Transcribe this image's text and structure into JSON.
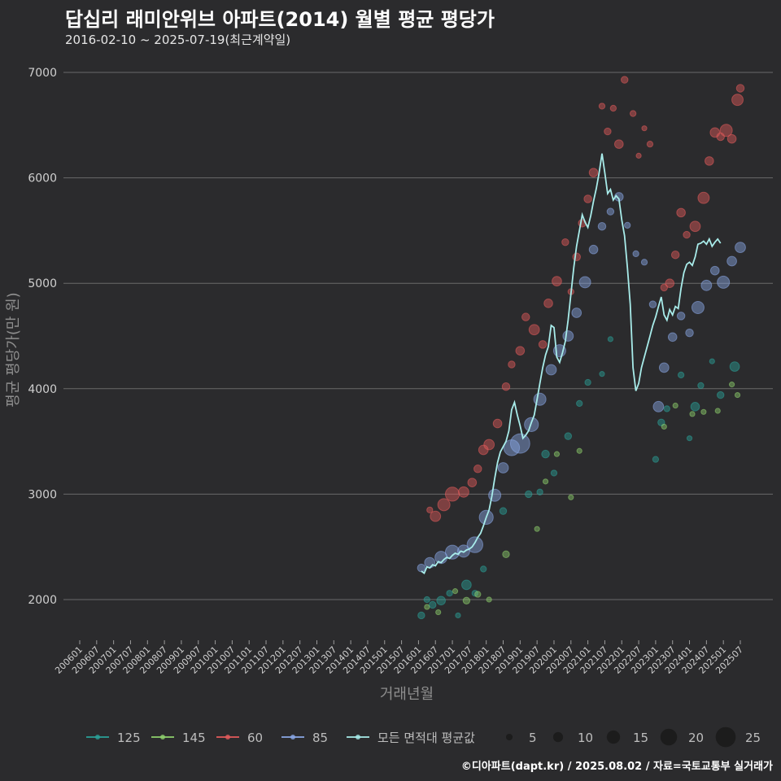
{
  "header": {
    "title": "답십리 래미안위브 아파트(2014) 월별 평균 평당가",
    "subtitle": "2016-02-10 ~ 2025-07-19(최근계약일)"
  },
  "caption": "©디아파트(dapt.kr) / 2025.08.02 / 자료=국토교통부 실거래가",
  "chart_data": {
    "type": "scatter",
    "xlabel": "거래년월",
    "ylabel": "평균 평당가(만 원)",
    "ylim": [
      1600,
      7050
    ],
    "yticks": [
      2000,
      3000,
      4000,
      5000,
      6000,
      7000
    ],
    "x_range": [
      "2006-01",
      "2025-09"
    ],
    "xticks": [
      "200601",
      "200607",
      "200701",
      "200707",
      "200801",
      "200807",
      "200901",
      "200907",
      "201001",
      "201007",
      "201101",
      "201107",
      "201201",
      "201207",
      "201301",
      "201307",
      "201401",
      "201407",
      "201501",
      "201507",
      "201601",
      "201607",
      "201701",
      "201707",
      "201801",
      "201807",
      "201901",
      "201907",
      "202001",
      "202007",
      "202101",
      "202107",
      "202201",
      "202207",
      "202301",
      "202307",
      "202401",
      "202407",
      "202501",
      "202507"
    ],
    "grid": true,
    "legend_position": "bottom",
    "colors": {
      "125": "#2aa198",
      "145": "#8fd16d",
      "60": "#e35b5b",
      "85": "#8aa8e6",
      "avg": "#a8ecea"
    },
    "series": [
      {
        "name": "125",
        "points": [
          [
            "2016-02",
            1850,
            4
          ],
          [
            "2016-04",
            2000,
            3
          ],
          [
            "2016-06",
            1950,
            4
          ],
          [
            "2016-09",
            1990,
            6
          ],
          [
            "2016-12",
            2060,
            3
          ],
          [
            "2017-03",
            1850,
            2
          ],
          [
            "2017-06",
            2140,
            7
          ],
          [
            "2017-09",
            2060,
            3
          ],
          [
            "2017-12",
            2290,
            3
          ],
          [
            "2018-07",
            2840,
            4
          ],
          [
            "2019-04",
            3000,
            4
          ],
          [
            "2019-08",
            3020,
            3
          ],
          [
            "2019-10",
            3380,
            5
          ],
          [
            "2020-01",
            3200,
            3
          ],
          [
            "2020-06",
            3550,
            4
          ],
          [
            "2020-10",
            3860,
            3
          ],
          [
            "2021-01",
            4060,
            3
          ],
          [
            "2021-06",
            4140,
            2
          ],
          [
            "2021-09",
            4470,
            2
          ],
          [
            "2023-01",
            3330,
            3
          ],
          [
            "2023-03",
            3680,
            4
          ],
          [
            "2023-05",
            3810,
            3
          ],
          [
            "2023-10",
            4130,
            3
          ],
          [
            "2024-01",
            3530,
            2
          ],
          [
            "2024-03",
            3830,
            6
          ],
          [
            "2024-05",
            4030,
            3
          ],
          [
            "2024-09",
            4260,
            2
          ],
          [
            "2024-12",
            3940,
            4
          ],
          [
            "2025-05",
            4210,
            7
          ]
        ]
      },
      {
        "name": "145",
        "points": [
          [
            "2016-04",
            1930,
            2
          ],
          [
            "2016-08",
            1880,
            2
          ],
          [
            "2017-02",
            2080,
            2
          ],
          [
            "2017-06",
            1990,
            4
          ],
          [
            "2017-10",
            2050,
            3
          ],
          [
            "2018-02",
            2000,
            2
          ],
          [
            "2018-08",
            2430,
            4
          ],
          [
            "2019-07",
            2670,
            2
          ],
          [
            "2019-10",
            3120,
            2
          ],
          [
            "2020-02",
            3380,
            2
          ],
          [
            "2020-07",
            2970,
            2
          ],
          [
            "2020-10",
            3410,
            2
          ],
          [
            "2023-04",
            3640,
            2
          ],
          [
            "2023-08",
            3840,
            2
          ],
          [
            "2024-02",
            3760,
            2
          ],
          [
            "2024-06",
            3780,
            2
          ],
          [
            "2024-11",
            3790,
            2
          ],
          [
            "2025-04",
            4040,
            2
          ],
          [
            "2025-06",
            3940,
            2
          ]
        ]
      },
      {
        "name": "60",
        "points": [
          [
            "2016-05",
            2850,
            3
          ],
          [
            "2016-07",
            2790,
            8
          ],
          [
            "2016-10",
            2900,
            10
          ],
          [
            "2017-01",
            3000,
            12
          ],
          [
            "2017-05",
            3020,
            8
          ],
          [
            "2017-08",
            3110,
            6
          ],
          [
            "2017-10",
            3240,
            5
          ],
          [
            "2017-12",
            3420,
            7
          ],
          [
            "2018-02",
            3470,
            8
          ],
          [
            "2018-05",
            3670,
            6
          ],
          [
            "2018-08",
            4020,
            5
          ],
          [
            "2018-10",
            4230,
            4
          ],
          [
            "2019-01",
            4360,
            6
          ],
          [
            "2019-03",
            4680,
            5
          ],
          [
            "2019-06",
            4560,
            8
          ],
          [
            "2019-09",
            4420,
            5
          ],
          [
            "2019-11",
            4810,
            6
          ],
          [
            "2020-02",
            5020,
            7
          ],
          [
            "2020-05",
            5390,
            4
          ],
          [
            "2020-07",
            4920,
            3
          ],
          [
            "2020-09",
            5250,
            5
          ],
          [
            "2020-11",
            5570,
            5
          ],
          [
            "2021-01",
            5800,
            5
          ],
          [
            "2021-03",
            6050,
            6
          ],
          [
            "2021-06",
            6680,
            3
          ],
          [
            "2021-08",
            6440,
            4
          ],
          [
            "2021-10",
            6660,
            3
          ],
          [
            "2021-12",
            6320,
            6
          ],
          [
            "2022-02",
            6930,
            4
          ],
          [
            "2022-05",
            6610,
            3
          ],
          [
            "2022-07",
            6210,
            2
          ],
          [
            "2022-09",
            6470,
            2
          ],
          [
            "2022-11",
            6320,
            3
          ],
          [
            "2023-04",
            4960,
            4
          ],
          [
            "2023-06",
            5000,
            6
          ],
          [
            "2023-08",
            5270,
            5
          ],
          [
            "2023-10",
            5670,
            6
          ],
          [
            "2023-12",
            5460,
            4
          ],
          [
            "2024-03",
            5540,
            8
          ],
          [
            "2024-06",
            5810,
            9
          ],
          [
            "2024-08",
            6160,
            6
          ],
          [
            "2024-10",
            6430,
            7
          ],
          [
            "2024-12",
            6390,
            5
          ],
          [
            "2025-02",
            6450,
            10
          ],
          [
            "2025-04",
            6370,
            6
          ],
          [
            "2025-06",
            6740,
            9
          ],
          [
            "2025-07",
            6850,
            5
          ]
        ]
      },
      {
        "name": "85",
        "points": [
          [
            "2016-02",
            2300,
            5
          ],
          [
            "2016-05",
            2350,
            8
          ],
          [
            "2016-09",
            2400,
            10
          ],
          [
            "2017-01",
            2450,
            12
          ],
          [
            "2017-05",
            2460,
            10
          ],
          [
            "2017-09",
            2520,
            14
          ],
          [
            "2018-01",
            2780,
            12
          ],
          [
            "2018-04",
            2990,
            10
          ],
          [
            "2018-07",
            3250,
            8
          ],
          [
            "2018-10",
            3440,
            14
          ],
          [
            "2019-01",
            3480,
            18
          ],
          [
            "2019-05",
            3660,
            12
          ],
          [
            "2019-08",
            3900,
            10
          ],
          [
            "2019-12",
            4180,
            8
          ],
          [
            "2020-03",
            4360,
            10
          ],
          [
            "2020-06",
            4500,
            8
          ],
          [
            "2020-09",
            4720,
            7
          ],
          [
            "2020-12",
            5010,
            9
          ],
          [
            "2021-03",
            5320,
            6
          ],
          [
            "2021-06",
            5540,
            5
          ],
          [
            "2021-09",
            5680,
            4
          ],
          [
            "2021-12",
            5820,
            6
          ],
          [
            "2022-03",
            5550,
            3
          ],
          [
            "2022-06",
            5280,
            3
          ],
          [
            "2022-09",
            5200,
            3
          ],
          [
            "2022-12",
            4800,
            4
          ],
          [
            "2023-02",
            3830,
            8
          ],
          [
            "2023-04",
            4200,
            7
          ],
          [
            "2023-07",
            4490,
            6
          ],
          [
            "2023-10",
            4690,
            5
          ],
          [
            "2024-01",
            4530,
            5
          ],
          [
            "2024-04",
            4770,
            10
          ],
          [
            "2024-07",
            4980,
            8
          ],
          [
            "2024-10",
            5120,
            6
          ],
          [
            "2025-01",
            5010,
            10
          ],
          [
            "2025-04",
            5210,
            7
          ],
          [
            "2025-07",
            5340,
            8
          ]
        ]
      }
    ],
    "average": {
      "name": "모든 면적대 평균값",
      "points": [
        [
          "2016-02",
          2270
        ],
        [
          "2016-03",
          2250
        ],
        [
          "2016-04",
          2310
        ],
        [
          "2016-05",
          2300
        ],
        [
          "2016-06",
          2330
        ],
        [
          "2016-07",
          2320
        ],
        [
          "2016-08",
          2360
        ],
        [
          "2016-09",
          2350
        ],
        [
          "2016-10",
          2380
        ],
        [
          "2016-11",
          2400
        ],
        [
          "2016-12",
          2390
        ],
        [
          "2017-01",
          2420
        ],
        [
          "2017-02",
          2440
        ],
        [
          "2017-03",
          2430
        ],
        [
          "2017-04",
          2460
        ],
        [
          "2017-05",
          2450
        ],
        [
          "2017-06",
          2470
        ],
        [
          "2017-07",
          2480
        ],
        [
          "2017-08",
          2500
        ],
        [
          "2017-09",
          2540
        ],
        [
          "2017-10",
          2590
        ],
        [
          "2017-11",
          2630
        ],
        [
          "2017-12",
          2700
        ],
        [
          "2018-01",
          2780
        ],
        [
          "2018-02",
          2850
        ],
        [
          "2018-03",
          2980
        ],
        [
          "2018-04",
          3150
        ],
        [
          "2018-05",
          3300
        ],
        [
          "2018-06",
          3400
        ],
        [
          "2018-07",
          3450
        ],
        [
          "2018-08",
          3500
        ],
        [
          "2018-09",
          3600
        ],
        [
          "2018-10",
          3800
        ],
        [
          "2018-11",
          3870
        ],
        [
          "2018-12",
          3750
        ],
        [
          "2019-01",
          3650
        ],
        [
          "2019-02",
          3530
        ],
        [
          "2019-03",
          3560
        ],
        [
          "2019-04",
          3600
        ],
        [
          "2019-05",
          3680
        ],
        [
          "2019-06",
          3750
        ],
        [
          "2019-07",
          3900
        ],
        [
          "2019-08",
          4050
        ],
        [
          "2019-09",
          4200
        ],
        [
          "2019-10",
          4320
        ],
        [
          "2019-11",
          4400
        ],
        [
          "2019-12",
          4600
        ],
        [
          "2020-01",
          4580
        ],
        [
          "2020-02",
          4300
        ],
        [
          "2020-03",
          4250
        ],
        [
          "2020-04",
          4340
        ],
        [
          "2020-05",
          4450
        ],
        [
          "2020-06",
          4650
        ],
        [
          "2020-07",
          4900
        ],
        [
          "2020-08",
          5150
        ],
        [
          "2020-09",
          5350
        ],
        [
          "2020-10",
          5500
        ],
        [
          "2020-11",
          5650
        ],
        [
          "2020-12",
          5580
        ],
        [
          "2021-01",
          5530
        ],
        [
          "2021-02",
          5640
        ],
        [
          "2021-03",
          5780
        ],
        [
          "2021-04",
          5900
        ],
        [
          "2021-05",
          6050
        ],
        [
          "2021-06",
          6230
        ],
        [
          "2021-07",
          6050
        ],
        [
          "2021-08",
          5850
        ],
        [
          "2021-09",
          5890
        ],
        [
          "2021-10",
          5790
        ],
        [
          "2021-11",
          5830
        ],
        [
          "2021-12",
          5800
        ],
        [
          "2022-01",
          5600
        ],
        [
          "2022-02",
          5450
        ],
        [
          "2022-03",
          5150
        ],
        [
          "2022-04",
          4800
        ],
        [
          "2022-05",
          4200
        ],
        [
          "2022-06",
          3980
        ],
        [
          "2022-07",
          4050
        ],
        [
          "2022-08",
          4200
        ],
        [
          "2022-09",
          4300
        ],
        [
          "2022-10",
          4400
        ],
        [
          "2022-11",
          4500
        ],
        [
          "2022-12",
          4600
        ],
        [
          "2023-01",
          4680
        ],
        [
          "2023-02",
          4780
        ],
        [
          "2023-03",
          4870
        ],
        [
          "2023-04",
          4700
        ],
        [
          "2023-05",
          4650
        ],
        [
          "2023-06",
          4750
        ],
        [
          "2023-07",
          4700
        ],
        [
          "2023-08",
          4780
        ],
        [
          "2023-09",
          4760
        ],
        [
          "2023-10",
          4950
        ],
        [
          "2023-11",
          5100
        ],
        [
          "2023-12",
          5180
        ],
        [
          "2024-01",
          5200
        ],
        [
          "2024-02",
          5170
        ],
        [
          "2024-03",
          5250
        ],
        [
          "2024-04",
          5370
        ],
        [
          "2024-05",
          5380
        ],
        [
          "2024-06",
          5400
        ],
        [
          "2024-07",
          5370
        ],
        [
          "2024-08",
          5420
        ],
        [
          "2024-09",
          5350
        ],
        [
          "2024-10",
          5390
        ],
        [
          "2024-11",
          5420
        ],
        [
          "2024-12",
          5380
        ]
      ]
    },
    "size_legend": [
      5,
      10,
      15,
      20,
      25
    ]
  }
}
